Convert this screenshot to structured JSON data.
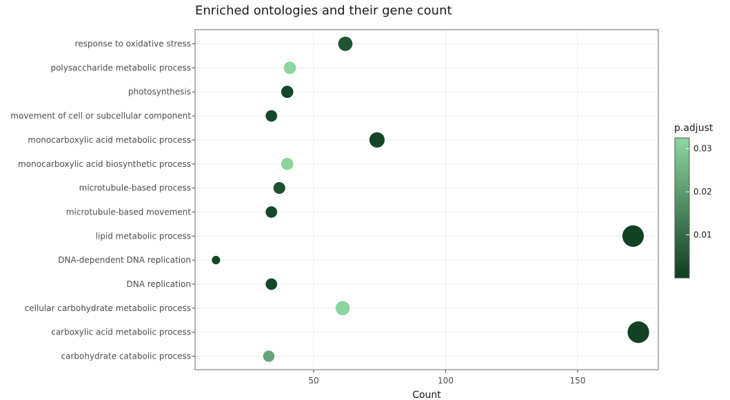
{
  "chart_data": {
    "type": "scatter",
    "title": "Enriched ontologies and their gene count",
    "xlabel": "Count",
    "ylabel": "",
    "xlim": [
      5,
      180
    ],
    "x_ticks": [
      50,
      100,
      150
    ],
    "grid": true,
    "legend": {
      "title": "p.adjust",
      "position": "right",
      "ticks": [
        0.01,
        0.02,
        0.03
      ],
      "range": [
        0,
        0.0325
      ],
      "color_low": "#0e3d20",
      "color_high": "#8ed6a1"
    },
    "categories": [
      "response to oxidative stress",
      "polysaccharide metabolic process",
      "photosynthesis",
      "movement of cell or subcellular component",
      "monocarboxylic acid metabolic process",
      "monocarboxylic acid biosynthetic process",
      "microtubule-based process",
      "microtubule-based movement",
      "lipid metabolic process",
      "DNA-dependent DNA replication",
      "DNA replication",
      "cellular carbohydrate metabolic process",
      "carboxylic acid metabolic process",
      "carbohydrate catabolic process"
    ],
    "points": [
      {
        "term": "response to oxidative stress",
        "count": 62,
        "p_adjust": 0.005
      },
      {
        "term": "polysaccharide metabolic process",
        "count": 41,
        "p_adjust": 0.032
      },
      {
        "term": "photosynthesis",
        "count": 40,
        "p_adjust": 0.002
      },
      {
        "term": "movement of cell or subcellular component",
        "count": 34,
        "p_adjust": 0.002
      },
      {
        "term": "monocarboxylic acid metabolic process",
        "count": 74,
        "p_adjust": 0.002
      },
      {
        "term": "monocarboxylic acid biosynthetic process",
        "count": 40,
        "p_adjust": 0.032
      },
      {
        "term": "microtubule-based process",
        "count": 37,
        "p_adjust": 0.004
      },
      {
        "term": "microtubule-based movement",
        "count": 34,
        "p_adjust": 0.002
      },
      {
        "term": "lipid metabolic process",
        "count": 171,
        "p_adjust": 0.001
      },
      {
        "term": "DNA-dependent DNA replication",
        "count": 13,
        "p_adjust": 0.002
      },
      {
        "term": "DNA replication",
        "count": 34,
        "p_adjust": 0.002
      },
      {
        "term": "cellular carbohydrate metabolic process",
        "count": 61,
        "p_adjust": 0.032
      },
      {
        "term": "carboxylic acid metabolic process",
        "count": 173,
        "p_adjust": 0.001
      },
      {
        "term": "carbohydrate catabolic process",
        "count": 33,
        "p_adjust": 0.022
      }
    ]
  }
}
